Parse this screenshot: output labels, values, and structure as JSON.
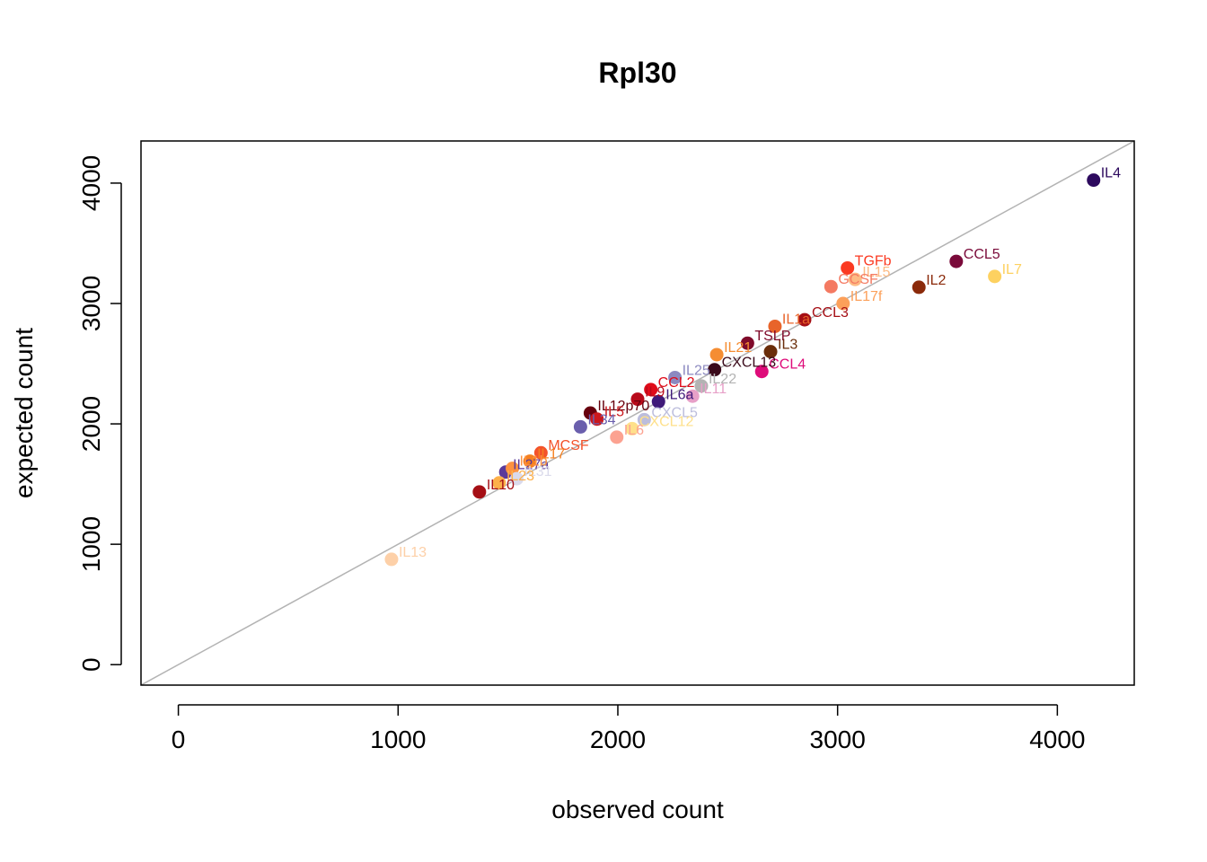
{
  "chart_data": {
    "type": "scatter",
    "title": "Rpl30",
    "xlabel": "observed count",
    "ylabel": "expected count",
    "xlim": [
      -170,
      4350
    ],
    "ylim": [
      -170,
      4350
    ],
    "xticks": [
      0,
      1000,
      2000,
      3000,
      4000
    ],
    "yticks": [
      0,
      1000,
      2000,
      3000,
      4000
    ],
    "reference_line": "y = x",
    "reference_line_color": "#b3b3b3",
    "points": [
      {
        "label": "IL4",
        "x": 4165,
        "y": 4025,
        "color": "#2d0a5e"
      },
      {
        "label": "CCL5",
        "x": 3540,
        "y": 3350,
        "color": "#7a0a3a"
      },
      {
        "label": "IL7",
        "x": 3715,
        "y": 3225,
        "color": "#fdd160"
      },
      {
        "label": "TGFb",
        "x": 3045,
        "y": 3295,
        "color": "#fb3a22"
      },
      {
        "label": "IL15",
        "x": 3080,
        "y": 3200,
        "color": "#fdbb84"
      },
      {
        "label": "GCSF",
        "x": 2970,
        "y": 3140,
        "color": "#f47a62"
      },
      {
        "label": "IL2",
        "x": 3370,
        "y": 3135,
        "color": "#8b2a0a"
      },
      {
        "label": "IL17f",
        "x": 3025,
        "y": 3000,
        "color": "#fca05a"
      },
      {
        "label": "CCL3",
        "x": 2850,
        "y": 2865,
        "color": "#a50f15"
      },
      {
        "label": "IL1a",
        "x": 2715,
        "y": 2810,
        "color": "#e8642a"
      },
      {
        "label": "IL3",
        "x": 2695,
        "y": 2600,
        "color": "#6a2d0a"
      },
      {
        "label": "TSLP",
        "x": 2590,
        "y": 2670,
        "color": "#7f0a2a"
      },
      {
        "label": "IL21",
        "x": 2450,
        "y": 2575,
        "color": "#f58d32"
      },
      {
        "label": "CCL4",
        "x": 2655,
        "y": 2435,
        "color": "#de0c7a"
      },
      {
        "label": "CXCL13",
        "x": 2440,
        "y": 2450,
        "color": "#3a0a1a"
      },
      {
        "label": "IL25",
        "x": 2260,
        "y": 2385,
        "color": "#8c89c0"
      },
      {
        "label": "IL22",
        "x": 2380,
        "y": 2315,
        "color": "#b3b3b3"
      },
      {
        "label": "CCL2",
        "x": 2150,
        "y": 2285,
        "color": "#e00c1a"
      },
      {
        "label": "IL9",
        "x": 2090,
        "y": 2205,
        "color": "#b80a1a"
      },
      {
        "label": "IL6a",
        "x": 2185,
        "y": 2185,
        "color": "#3f1a7a"
      },
      {
        "label": "IL11",
        "x": 2340,
        "y": 2230,
        "color": "#e7a0c8"
      },
      {
        "label": "IL12p70",
        "x": 1875,
        "y": 2090,
        "color": "#67000d"
      },
      {
        "label": "IL5",
        "x": 1905,
        "y": 2040,
        "color": "#cb181d"
      },
      {
        "label": "IL34",
        "x": 1830,
        "y": 1975,
        "color": "#6a5fad"
      },
      {
        "label": "CXCL5",
        "x": 2120,
        "y": 2035,
        "color": "#bcbddc"
      },
      {
        "label": "CXCL12",
        "x": 2065,
        "y": 1960,
        "color": "#fee08b"
      },
      {
        "label": "IL6",
        "x": 1995,
        "y": 1890,
        "color": "#fca291"
      },
      {
        "label": "MCSF",
        "x": 1650,
        "y": 1760,
        "color": "#f3522a"
      },
      {
        "label": "IL17",
        "x": 1600,
        "y": 1690,
        "color": "#f58020"
      },
      {
        "label": "IL27a",
        "x": 1490,
        "y": 1600,
        "color": "#5a3a9a"
      },
      {
        "label": "IL1b",
        "x": 1520,
        "y": 1630,
        "color": "#fd9240"
      },
      {
        "label": "IL31",
        "x": 1540,
        "y": 1545,
        "color": "#dadaeb"
      },
      {
        "label": "IL23",
        "x": 1460,
        "y": 1510,
        "color": "#fdb04a"
      },
      {
        "label": "IL10",
        "x": 1370,
        "y": 1435,
        "color": "#a50f15"
      },
      {
        "label": "IL13",
        "x": 970,
        "y": 875,
        "color": "#fdd0a8"
      }
    ]
  }
}
